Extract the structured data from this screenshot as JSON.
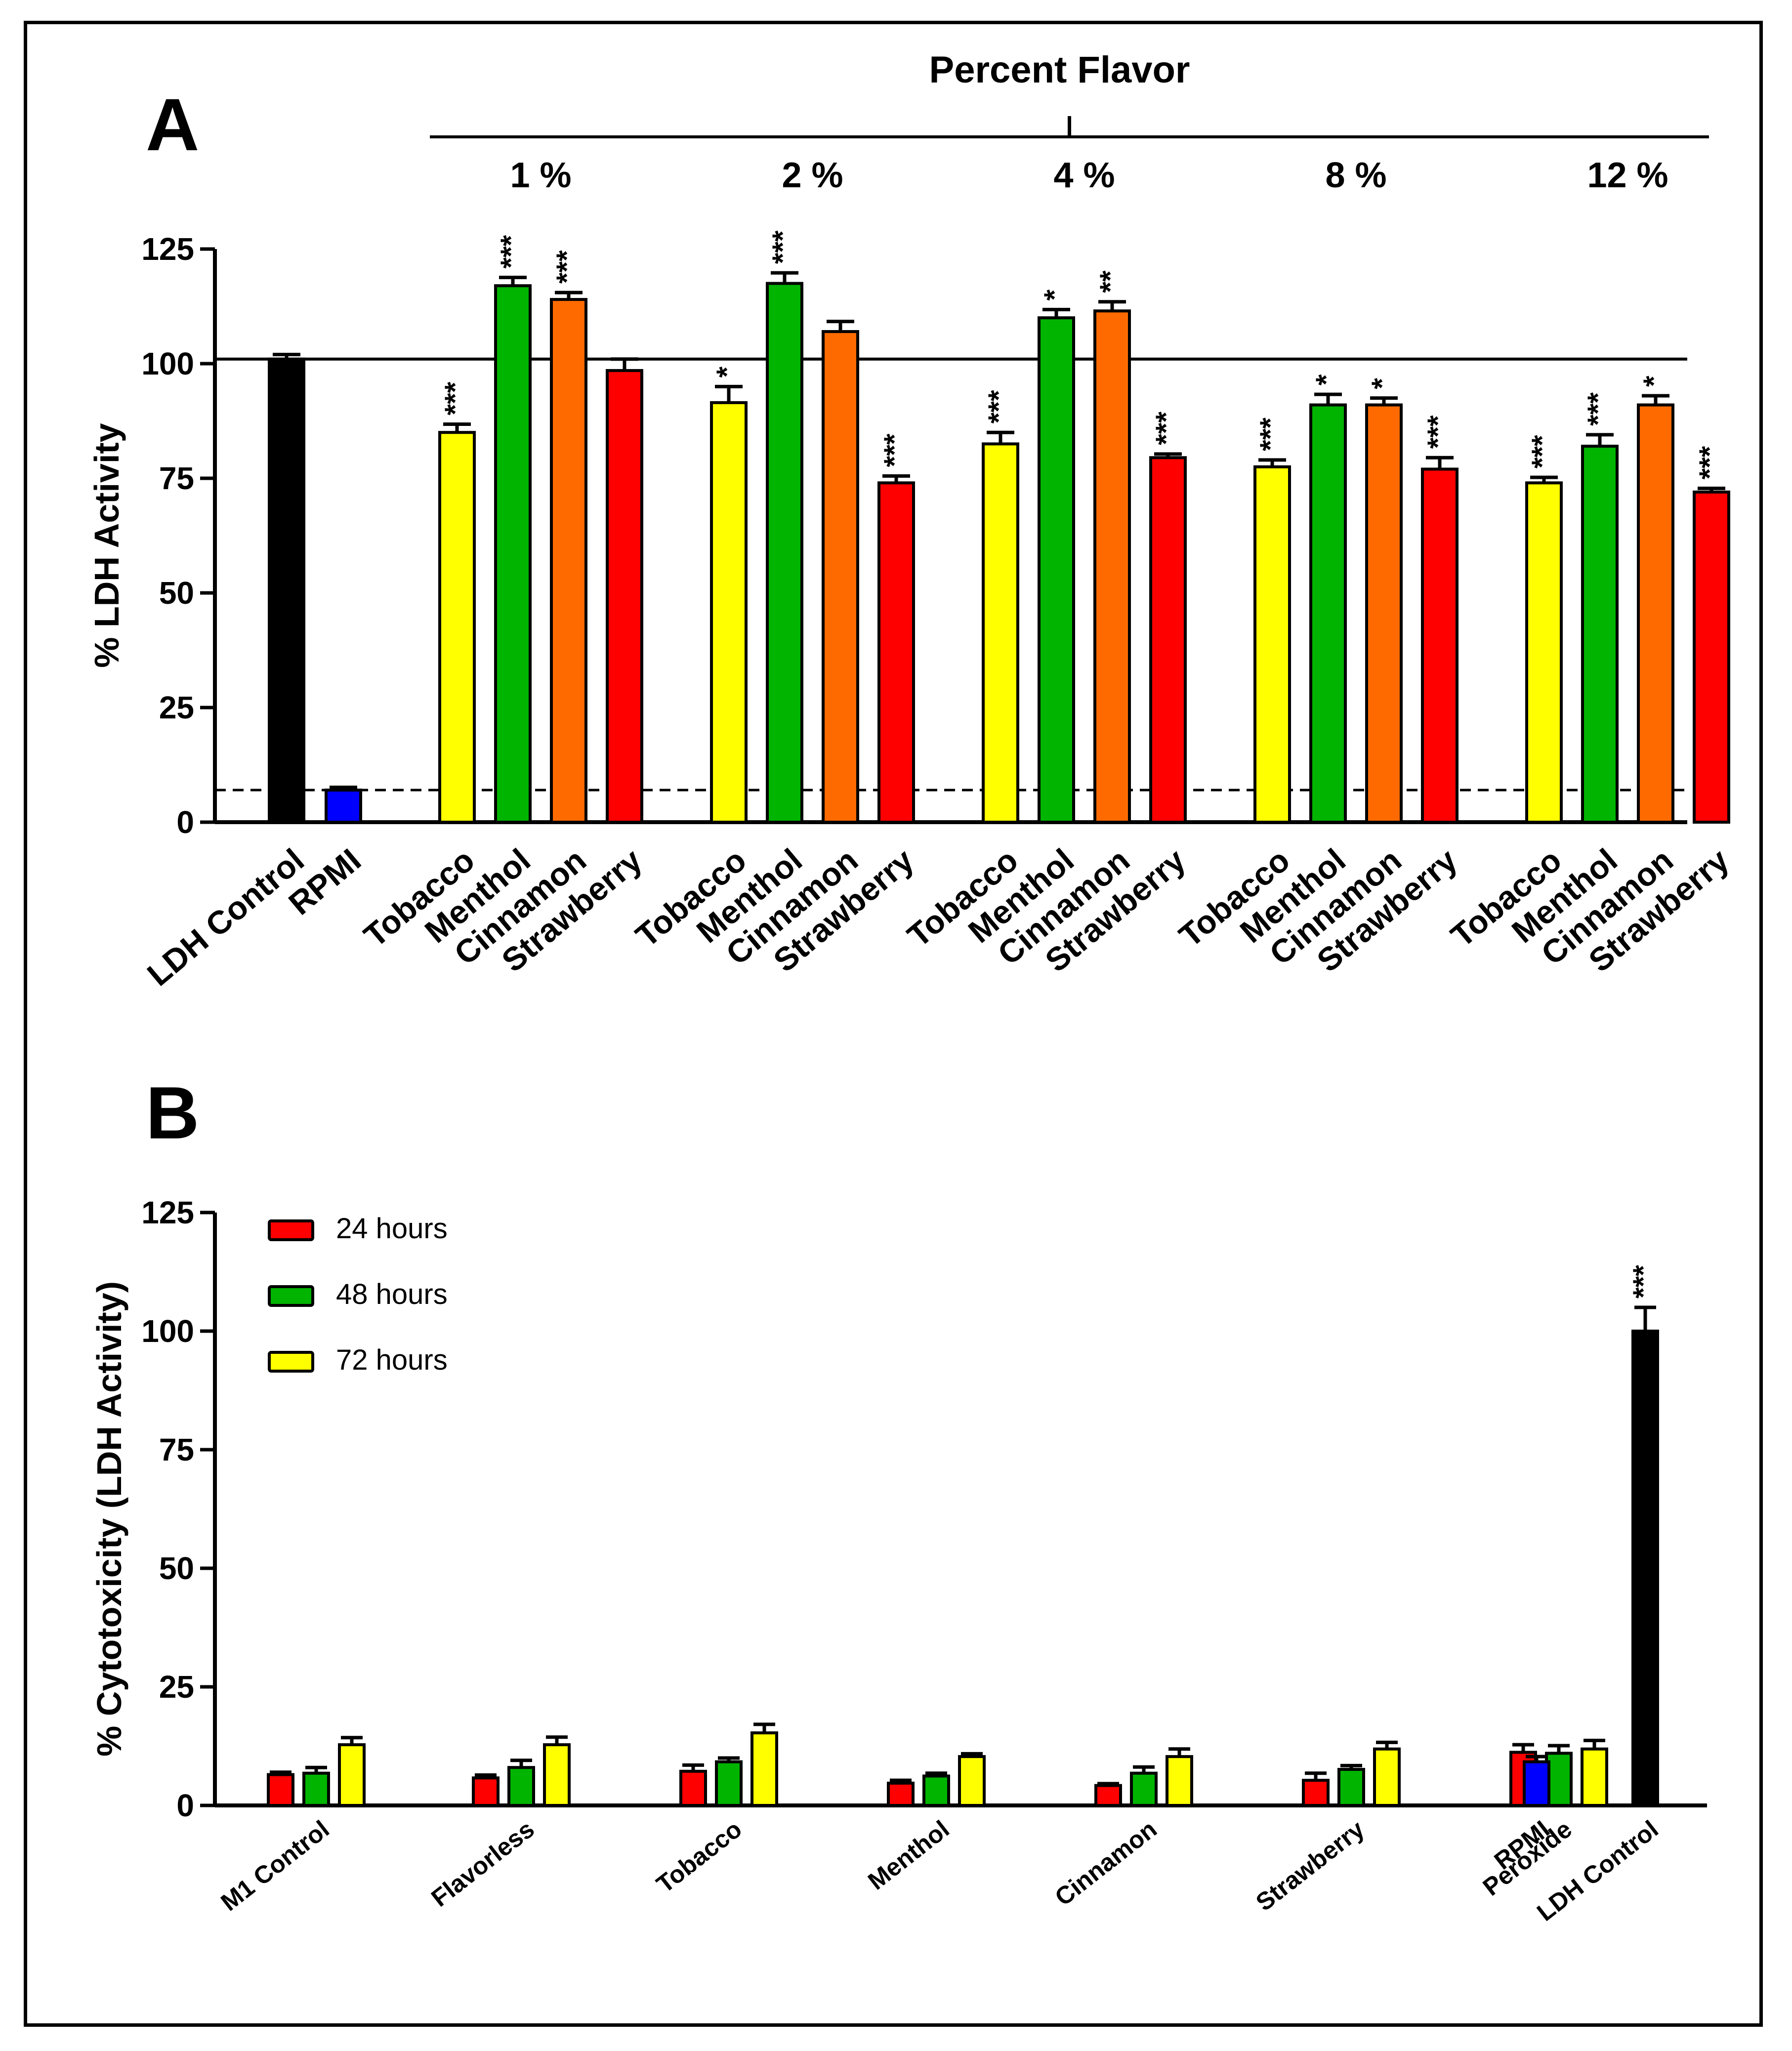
{
  "chart_data": [
    {
      "panel": "A",
      "type": "bar",
      "title": "Percent Flavor",
      "xlabel": "",
      "ylabel": "% LDH Activity",
      "ylim": [
        0,
        125
      ],
      "yticks": [
        "0",
        "25",
        "50",
        "75",
        "100",
        "125"
      ],
      "reference_lines": [
        {
          "value": 101,
          "style": "solid"
        },
        {
          "value": 7,
          "style": "dashed"
        }
      ],
      "group_labels": [
        "1 %",
        "2 %",
        "4 %",
        "8 %",
        "12 %"
      ],
      "controls": [
        {
          "label": "LDH Control",
          "value": 101,
          "error": 1,
          "color": "#000000",
          "sig": ""
        },
        {
          "label": "RPMI",
          "value": 7,
          "error": 0.6,
          "color": "#0000ff",
          "sig": ""
        }
      ],
      "flavor_names": [
        "Tobacco",
        "Menthol",
        "Cinnamon",
        "Strawberry"
      ],
      "flavor_colors": [
        "#ffff00",
        "#00b400",
        "#ff6a00",
        "#ff0000"
      ],
      "groups": [
        {
          "label": "1 %",
          "values": [
            85,
            117,
            114,
            98.5
          ],
          "errors": [
            1.8,
            1.8,
            1.5,
            2.5
          ],
          "sig": [
            "***",
            "***",
            "***",
            ""
          ]
        },
        {
          "label": "2 %",
          "values": [
            91.5,
            117.5,
            107,
            74
          ],
          "errors": [
            3.5,
            2.3,
            2.2,
            1.5
          ],
          "sig": [
            "*",
            "***",
            "",
            "***"
          ]
        },
        {
          "label": "4 %",
          "values": [
            82.5,
            110,
            111.5,
            79.5
          ],
          "errors": [
            2.5,
            1.8,
            2,
            0.8
          ],
          "sig": [
            "***",
            "*",
            "**",
            "***"
          ]
        },
        {
          "label": "8 %",
          "values": [
            77.5,
            91,
            91,
            77
          ],
          "errors": [
            1.5,
            2.3,
            1.5,
            2.5
          ],
          "sig": [
            "***",
            "*",
            "*",
            "***"
          ]
        },
        {
          "label": "12 %",
          "values": [
            74,
            82,
            91,
            72
          ],
          "errors": [
            1.2,
            2.5,
            2,
            0.8
          ],
          "sig": [
            "***",
            "***",
            "*",
            "***"
          ]
        }
      ]
    },
    {
      "panel": "B",
      "type": "bar",
      "title": "",
      "xlabel": "",
      "ylabel": "% Cytotoxicity (LDH Activity)",
      "ylim": [
        0,
        125
      ],
      "yticks": [
        "0",
        "25",
        "50",
        "75",
        "100",
        "125"
      ],
      "series": [
        {
          "name": "24 hours",
          "color": "#ff0000"
        },
        {
          "name": "48 hours",
          "color": "#00b400"
        },
        {
          "name": "72 hours",
          "color": "#ffff00"
        }
      ],
      "legend_position": "top-left",
      "categories": [
        {
          "label": "M1 Control",
          "values": [
            6.5,
            6.8,
            12.8
          ],
          "errors": [
            0.5,
            1.2,
            1.5
          ]
        },
        {
          "label": "Flavorless",
          "values": [
            5.8,
            8,
            12.8
          ],
          "errors": [
            0.6,
            1.5,
            1.6
          ]
        },
        {
          "label": "Tobacco",
          "values": [
            7.2,
            9.2,
            15.3
          ],
          "errors": [
            1.3,
            0.8,
            1.8
          ]
        },
        {
          "label": "Menthol",
          "values": [
            4.7,
            6.2,
            10.3
          ],
          "errors": [
            0.6,
            0.6,
            0.6
          ]
        },
        {
          "label": "Cinnamon",
          "values": [
            4.2,
            6.8,
            10.3
          ],
          "errors": [
            0.4,
            1.3,
            1.6
          ]
        },
        {
          "label": "Strawberry",
          "values": [
            5.3,
            7.6,
            11.9
          ],
          "errors": [
            1.5,
            0.8,
            1.4
          ]
        },
        {
          "label": "Peroxide",
          "values": [
            11.2,
            11,
            11.9
          ],
          "errors": [
            1.6,
            1.6,
            1.8
          ]
        }
      ],
      "single_bars": [
        {
          "label": "RPMI",
          "value": 9.2,
          "error": 1.1,
          "color": "#0000ff",
          "sig": ""
        },
        {
          "label": "LDH Control",
          "value": 100,
          "error": 5,
          "color": "#000000",
          "sig": "***"
        }
      ]
    }
  ],
  "panel_labels": {
    "a": "A",
    "b": "B"
  }
}
